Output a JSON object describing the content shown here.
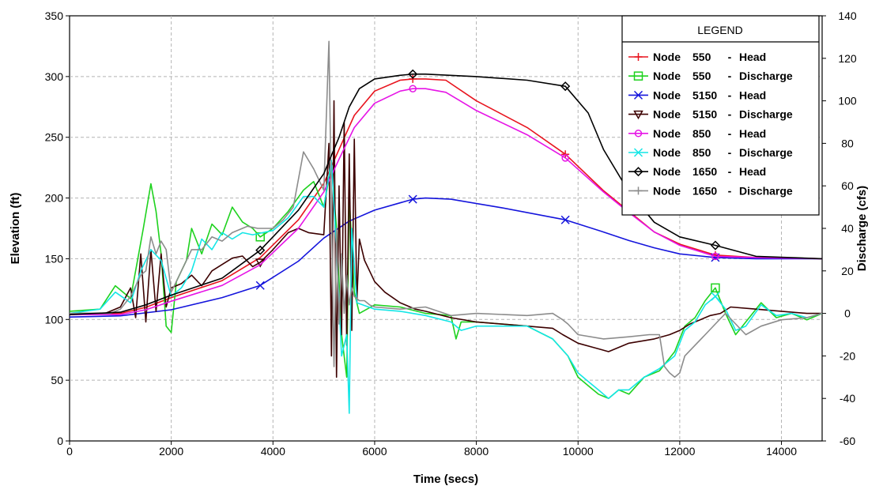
{
  "chart_data": {
    "type": "line",
    "title": "",
    "xlabel": "Time (secs)",
    "ylabel": "Elevation (ft)",
    "y2label": "Discharge (cfs)",
    "xlim": [
      0,
      14800
    ],
    "ylim": [
      0,
      350
    ],
    "y2lim": [
      -60,
      140
    ],
    "x_ticks": [
      "0",
      "2000",
      "4000",
      "6000",
      "8000",
      "10000",
      "12000",
      "14000"
    ],
    "y_ticks": [
      "0",
      "50",
      "100",
      "150",
      "200",
      "250",
      "300",
      "350"
    ],
    "y2_ticks": [
      "-60",
      "-40",
      "-20",
      "0",
      "20",
      "40",
      "60",
      "80",
      "100",
      "120",
      "140"
    ],
    "grid": true,
    "legend": {
      "title": "LEGEND",
      "placement": "top-right",
      "entries": [
        {
          "node": "Node",
          "id": "550",
          "dash": "-",
          "kind": "Head"
        },
        {
          "node": "Node",
          "id": "550",
          "dash": "-",
          "kind": "Discharge"
        },
        {
          "node": "Node",
          "id": "5150",
          "dash": "-",
          "kind": "Head"
        },
        {
          "node": "Node",
          "id": "5150",
          "dash": "-",
          "kind": "Discharge"
        },
        {
          "node": "Node",
          "id": "850",
          "dash": "-",
          "kind": "Head"
        },
        {
          "node": "Node",
          "id": "850",
          "dash": "-",
          "kind": "Discharge"
        },
        {
          "node": "Node",
          "id": "1650",
          "dash": "-",
          "kind": "Head"
        },
        {
          "node": "Node",
          "id": "1650",
          "dash": "-",
          "kind": "Discharge"
        }
      ]
    },
    "series": [
      {
        "name": "Node 550 - Head",
        "axis": "left",
        "color": "#e8141e",
        "marker": "plus",
        "markers_x": [
          6750,
          9750,
          12700
        ],
        "x": [
          0,
          1000,
          1500,
          2000,
          3000,
          3750,
          4500,
          5000,
          5300,
          5600,
          6000,
          6500,
          6750,
          7000,
          7400,
          8000,
          9000,
          9750,
          10500,
          11000,
          11500,
          12000,
          12700,
          13500,
          14800
        ],
        "y": [
          104,
          105,
          110,
          118,
          132,
          151,
          182,
          212,
          240,
          268,
          288,
          297,
          298,
          298,
          297,
          280,
          258,
          236,
          206,
          189,
          172,
          162,
          153,
          151,
          150
        ]
      },
      {
        "name": "Node 550 - Discharge",
        "axis": "right",
        "color": "#1ed21e",
        "marker": "square",
        "markers_x": [
          3750,
          12700
        ],
        "x": [
          0,
          600,
          900,
          1200,
          1450,
          1600,
          1700,
          1800,
          1900,
          2000,
          2100,
          2300,
          2400,
          2600,
          2800,
          3000,
          3200,
          3400,
          3600,
          3750,
          4000,
          4300,
          4600,
          4800,
          5000,
          5150,
          5250,
          5350,
          5450,
          5500,
          5600,
          5700,
          6000,
          6500,
          7000,
          7500,
          7600,
          7700,
          8000,
          8500,
          9000,
          9500,
          9800,
          10000,
          10200,
          10400,
          10600,
          10800,
          11000,
          11300,
          11600,
          11900,
          12100,
          12300,
          12500,
          12700,
          12900,
          13100,
          13300,
          13600,
          13900,
          14200,
          14500,
          14800
        ],
        "y": [
          1,
          2,
          13,
          7,
          40,
          61,
          48,
          28,
          -6,
          -9,
          15,
          25,
          40,
          28,
          42,
          37,
          50,
          43,
          40,
          36,
          40,
          48,
          58,
          62,
          50,
          70,
          40,
          -10,
          -30,
          55,
          10,
          0,
          4,
          3,
          0,
          -1,
          -12,
          -4,
          -4,
          -5,
          -6,
          -12,
          -20,
          -30,
          -34,
          -38,
          -40,
          -36,
          -38,
          -30,
          -27,
          -18,
          -6,
          -2,
          6,
          12,
          0,
          -10,
          -4,
          5,
          -2,
          0,
          -3,
          0
        ]
      },
      {
        "name": "Node 5150 - Head",
        "axis": "left",
        "color": "#1414dc",
        "marker": "x",
        "markers_x": [
          3750,
          6750,
          9750,
          12700
        ],
        "x": [
          0,
          1000,
          2000,
          3000,
          3750,
          4500,
          5000,
          5500,
          6000,
          6500,
          6750,
          7000,
          7500,
          8500,
          9750,
          10500,
          11000,
          11500,
          12000,
          12700,
          13500,
          14800
        ],
        "y": [
          102,
          103,
          108,
          118,
          128,
          148,
          167,
          181,
          190,
          196,
          199,
          200,
          199,
          192,
          182,
          172,
          165,
          159,
          154,
          151,
          150,
          150
        ]
      },
      {
        "name": "Node 5150 - Discharge",
        "axis": "right",
        "color": "#3c0000",
        "marker": "triangle-down",
        "markers_x": [
          3750
        ],
        "x": [
          0,
          700,
          1000,
          1200,
          1300,
          1400,
          1500,
          1600,
          1700,
          1800,
          1900,
          2000,
          2200,
          2400,
          2600,
          2800,
          3000,
          3200,
          3400,
          3600,
          3750,
          4000,
          4300,
          4500,
          4700,
          5000,
          5100,
          5150,
          5200,
          5250,
          5300,
          5350,
          5400,
          5450,
          5500,
          5550,
          5600,
          5650,
          5700,
          5800,
          5900,
          6000,
          6200,
          6500,
          6800,
          7000,
          7500,
          8000,
          9000,
          9500,
          9700,
          10000,
          10300,
          10600,
          11000,
          11500,
          11800,
          12000,
          12200,
          12400,
          12600,
          12800,
          13000,
          13500,
          14000,
          14500,
          14800
        ],
        "y": [
          0,
          0,
          3,
          12,
          -2,
          28,
          -4,
          30,
          1,
          28,
          3,
          12,
          14,
          18,
          13,
          20,
          23,
          26,
          27,
          22,
          24,
          30,
          38,
          40,
          38,
          37,
          80,
          -20,
          100,
          -30,
          60,
          -10,
          90,
          -15,
          75,
          -8,
          82,
          5,
          35,
          25,
          20,
          15,
          10,
          5,
          2,
          1,
          -2,
          -4,
          -6,
          -7,
          -10,
          -14,
          -16,
          -18,
          -14,
          -12,
          -10,
          -8,
          -5,
          -3,
          -1,
          0,
          3,
          2,
          1,
          0,
          0
        ]
      },
      {
        "name": "Node 850 - Head",
        "axis": "left",
        "color": "#e614e6",
        "marker": "circle",
        "markers_x": [
          6750,
          9750,
          12700
        ],
        "x": [
          0,
          1000,
          1500,
          2000,
          3000,
          3750,
          4500,
          5000,
          5300,
          5600,
          6000,
          6500,
          6750,
          7000,
          7400,
          8000,
          9000,
          9750,
          10500,
          11000,
          11500,
          12000,
          12700,
          13500,
          14800
        ],
        "y": [
          104,
          104,
          108,
          115,
          128,
          145,
          175,
          205,
          232,
          258,
          278,
          288,
          290,
          290,
          287,
          272,
          252,
          233,
          205,
          188,
          172,
          161,
          152,
          151,
          150
        ]
      },
      {
        "name": "Node 850 - Discharge",
        "axis": "right",
        "color": "#14e6e6",
        "marker": "x",
        "markers_x": [
          12700
        ],
        "x": [
          0,
          600,
          900,
          1200,
          1400,
          1600,
          1800,
          2000,
          2200,
          2400,
          2600,
          2800,
          3000,
          3200,
          3400,
          3600,
          3800,
          4000,
          4300,
          4600,
          4800,
          5000,
          5150,
          5250,
          5350,
          5450,
          5500,
          5550,
          5650,
          6000,
          6500,
          7000,
          7500,
          7700,
          8000,
          8500,
          9000,
          9500,
          9800,
          10000,
          10200,
          10400,
          10600,
          10800,
          11000,
          11300,
          11600,
          11900,
          12100,
          12300,
          12500,
          12700,
          12900,
          13100,
          13300,
          13600,
          13900,
          14200,
          14500,
          14800
        ],
        "y": [
          0,
          2,
          10,
          5,
          20,
          30,
          25,
          8,
          12,
          20,
          35,
          30,
          38,
          35,
          38,
          37,
          38,
          39,
          45,
          55,
          55,
          50,
          72,
          30,
          -20,
          -10,
          -47,
          40,
          5,
          2,
          1,
          -1,
          -4,
          -8,
          -6,
          -6,
          -6,
          -12,
          -20,
          -28,
          -32,
          -36,
          -40,
          -36,
          -36,
          -30,
          -26,
          -20,
          -8,
          -4,
          4,
          8,
          2,
          -8,
          -6,
          4,
          -1,
          0,
          -2,
          0
        ]
      },
      {
        "name": "Node 1650 - Head",
        "axis": "left",
        "color": "#000000",
        "marker": "diamond",
        "markers_x": [
          3750,
          6750,
          9750,
          12700
        ],
        "x": [
          0,
          1000,
          1500,
          2000,
          3000,
          3750,
          4500,
          5000,
          5300,
          5500,
          5700,
          6000,
          6500,
          6750,
          7000,
          8000,
          9000,
          9750,
          10200,
          10500,
          11000,
          11500,
          12000,
          12700,
          13500,
          14800
        ],
        "y": [
          104,
          106,
          112,
          120,
          134,
          157,
          190,
          220,
          250,
          275,
          290,
          298,
          301,
          302,
          302,
          300,
          297,
          292,
          270,
          240,
          205,
          180,
          168,
          161,
          152,
          150
        ]
      },
      {
        "name": "Node 1650 - Discharge",
        "axis": "right",
        "color": "#8c8c8c",
        "marker": "plus",
        "markers_x": [],
        "x": [
          0,
          800,
          1000,
          1200,
          1400,
          1500,
          1600,
          1700,
          1800,
          1900,
          2000,
          2200,
          2400,
          2600,
          2800,
          3000,
          3200,
          3400,
          3500,
          3700,
          3800,
          4000,
          4200,
          4400,
          4600,
          4700,
          4800,
          5000,
          5100,
          5150,
          5200,
          5250,
          5300,
          5350,
          5400,
          5450,
          5500,
          5550,
          5600,
          5700,
          5800,
          5900,
          6000,
          6500,
          7000,
          7500,
          8000,
          9000,
          9500,
          9700,
          9800,
          10000,
          10500,
          11000,
          11400,
          11600,
          11700,
          11800,
          11900,
          12000,
          12100,
          12300,
          12500,
          12700,
          12900,
          13100,
          13300,
          13600,
          14000,
          14500,
          14800
        ],
        "y": [
          0,
          0,
          2,
          8,
          18,
          20,
          36,
          28,
          34,
          30,
          10,
          20,
          30,
          30,
          36,
          34,
          38,
          40,
          41,
          40,
          40,
          40,
          44,
          50,
          76,
          72,
          68,
          58,
          128,
          50,
          -25,
          40,
          -5,
          28,
          0,
          18,
          4,
          12,
          8,
          6,
          6,
          4,
          3,
          2,
          3,
          -1,
          0,
          -1,
          0,
          -3,
          -5,
          -10,
          -12,
          -11,
          -10,
          -10,
          -25,
          -28,
          -30,
          -28,
          -20,
          -15,
          -10,
          -5,
          0,
          -5,
          -10,
          -6,
          -3,
          -2,
          0
        ]
      }
    ]
  }
}
